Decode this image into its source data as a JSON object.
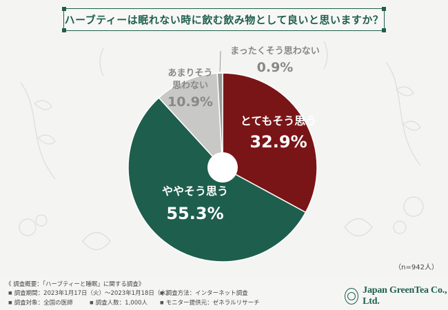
{
  "title": "ハーブティーは眠れない時に飲む飲み物として良いと思いますか？",
  "sample_note": "（n=942人）",
  "colors": {
    "very_much": "#7a1517",
    "somewhat": "#1e5e4d",
    "not_really": "#c8c8c6",
    "not_at_all": "#9a9a98",
    "background": "#f4f4f3"
  },
  "chart_data": {
    "type": "pie",
    "title": "ハーブティーは眠れない時に飲む飲み物として良いと思いますか？",
    "donut_hole": true,
    "start": "12 o'clock, clockwise",
    "slices": [
      {
        "label": "とてもそう思う",
        "value": 32.9,
        "value_label": "32.9%",
        "color": "#7a1517",
        "label_position": "inside"
      },
      {
        "label": "ややそう思う",
        "value": 55.3,
        "value_label": "55.3%",
        "color": "#1e5e4d",
        "label_position": "inside"
      },
      {
        "label_lines": [
          "あまりそう",
          "思わない"
        ],
        "label": "あまりそう思わない",
        "value": 10.9,
        "value_label": "10.9%",
        "color": "#c8c8c6",
        "label_position": "outside"
      },
      {
        "label": "まったくそう思わない",
        "value": 0.9,
        "value_label": "0.9%",
        "color": "#9a9a98",
        "label_position": "outside"
      }
    ]
  },
  "footer": {
    "header": "《 調査概要：「ハーブティーと睡眠」に関する調査》",
    "period": "調査期間：2023年1月17日（火）～2023年1月18日（水）",
    "method": "調査方法：インターネット調査",
    "target": "調査対象：全国の医師",
    "count": "調査人数：1,000人",
    "provider": "モニター提供元：ゼネラルリサーチ"
  },
  "logo": {
    "name": "Japan GreenTea Co., Ltd."
  }
}
